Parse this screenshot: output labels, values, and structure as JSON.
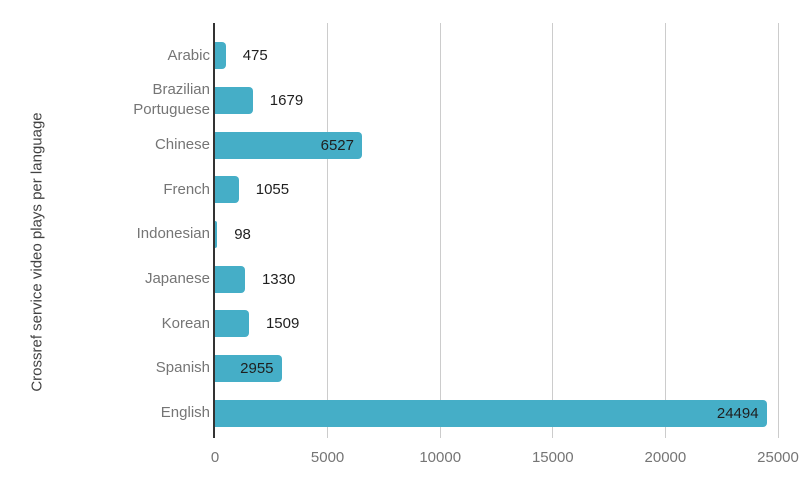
{
  "chart_data": {
    "type": "bar",
    "orientation": "horizontal",
    "title": "",
    "xlabel": "",
    "ylabel": "Crossref service video plays per language",
    "categories": [
      "Arabic",
      "Brazilian Portuguese",
      "Chinese",
      "French",
      "Indonesian",
      "Japanese",
      "Korean",
      "Spanish",
      "English"
    ],
    "values": [
      475,
      1679,
      6527,
      1055,
      98,
      1330,
      1509,
      2955,
      24494
    ],
    "x_ticks": [
      0,
      5000,
      10000,
      15000,
      20000,
      25000
    ],
    "xlim": [
      0,
      25000
    ],
    "grid": true,
    "legend": "none",
    "value_labels_shown": true,
    "colors": {
      "bar": "#45aec7",
      "category_label": "#757575",
      "value_label": "#1f1f1f",
      "tick_label": "#757575",
      "axis_title": "#424242",
      "gridline": "#cccccc",
      "baseline": "#333333",
      "background": "#ffffff"
    }
  }
}
